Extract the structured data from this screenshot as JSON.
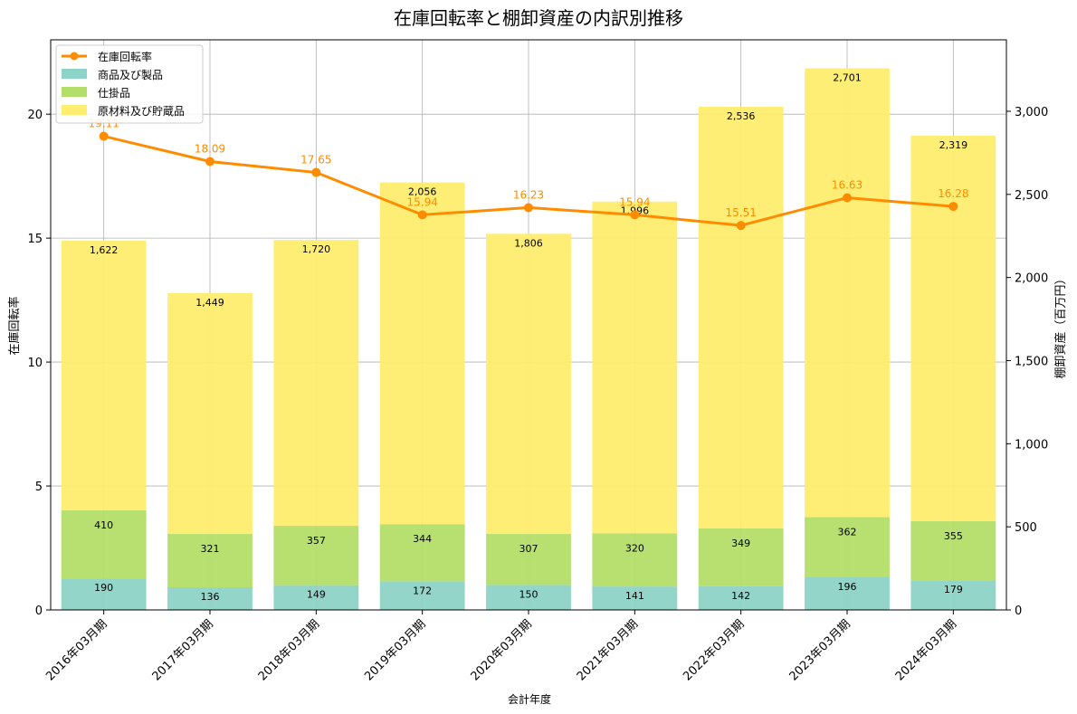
{
  "chart_data": {
    "type": "bar",
    "title": "在庫回転率と棚卸資産の内訳別推移",
    "xlabel": "会計年度",
    "ylabel_left": "在庫回転率",
    "ylabel_right": "棚卸資産（百万円）",
    "categories": [
      "2016年03月期",
      "2017年03月期",
      "2018年03月期",
      "2019年03月期",
      "2020年03月期",
      "2021年03月期",
      "2022年03月期",
      "2023年03月期",
      "2024年03月期"
    ],
    "ylim_left": [
      0,
      23
    ],
    "ylim_right": [
      0,
      3430
    ],
    "left_ticks": [
      "0",
      "5",
      "10",
      "15",
      "20"
    ],
    "right_ticks": [
      "0",
      "500",
      "1,000",
      "1,500",
      "2,000",
      "2,500",
      "3,000"
    ],
    "grid": true,
    "legend_position": "top-left",
    "series": [
      {
        "name": "在庫回転率",
        "type": "line",
        "axis": "left",
        "color": "#ff8c00",
        "values": [
          19.11,
          18.09,
          17.65,
          15.94,
          16.23,
          15.94,
          15.51,
          16.63,
          16.28
        ],
        "labels": [
          "19.11",
          "18.09",
          "17.65",
          "15.94",
          "16.23",
          "15.94",
          "15.51",
          "16.63",
          "16.28"
        ]
      },
      {
        "name": "商品及び製品",
        "type": "bar",
        "axis": "right",
        "color": "#8ed3c7",
        "values": [
          190,
          136,
          149,
          172,
          150,
          141,
          142,
          196,
          179
        ],
        "labels": [
          "190",
          "136",
          "149",
          "172",
          "150",
          "141",
          "142",
          "196",
          "179"
        ]
      },
      {
        "name": "仕掛品",
        "type": "bar",
        "axis": "right",
        "color": "#b3de69",
        "values": [
          410,
          321,
          357,
          344,
          307,
          320,
          349,
          362,
          355
        ],
        "labels": [
          "410",
          "321",
          "357",
          "344",
          "307",
          "320",
          "349",
          "362",
          "355"
        ]
      },
      {
        "name": "原材料及び貯蔵品",
        "type": "bar",
        "axis": "right",
        "color": "#ffed6f",
        "values": [
          1622,
          1449,
          1720,
          2056,
          1806,
          1996,
          2536,
          2701,
          2319
        ],
        "labels": [
          "1,622",
          "1,449",
          "1,720",
          "2,056",
          "1,806",
          "1,996",
          "2,536",
          "2,701",
          "2,319"
        ]
      }
    ]
  }
}
